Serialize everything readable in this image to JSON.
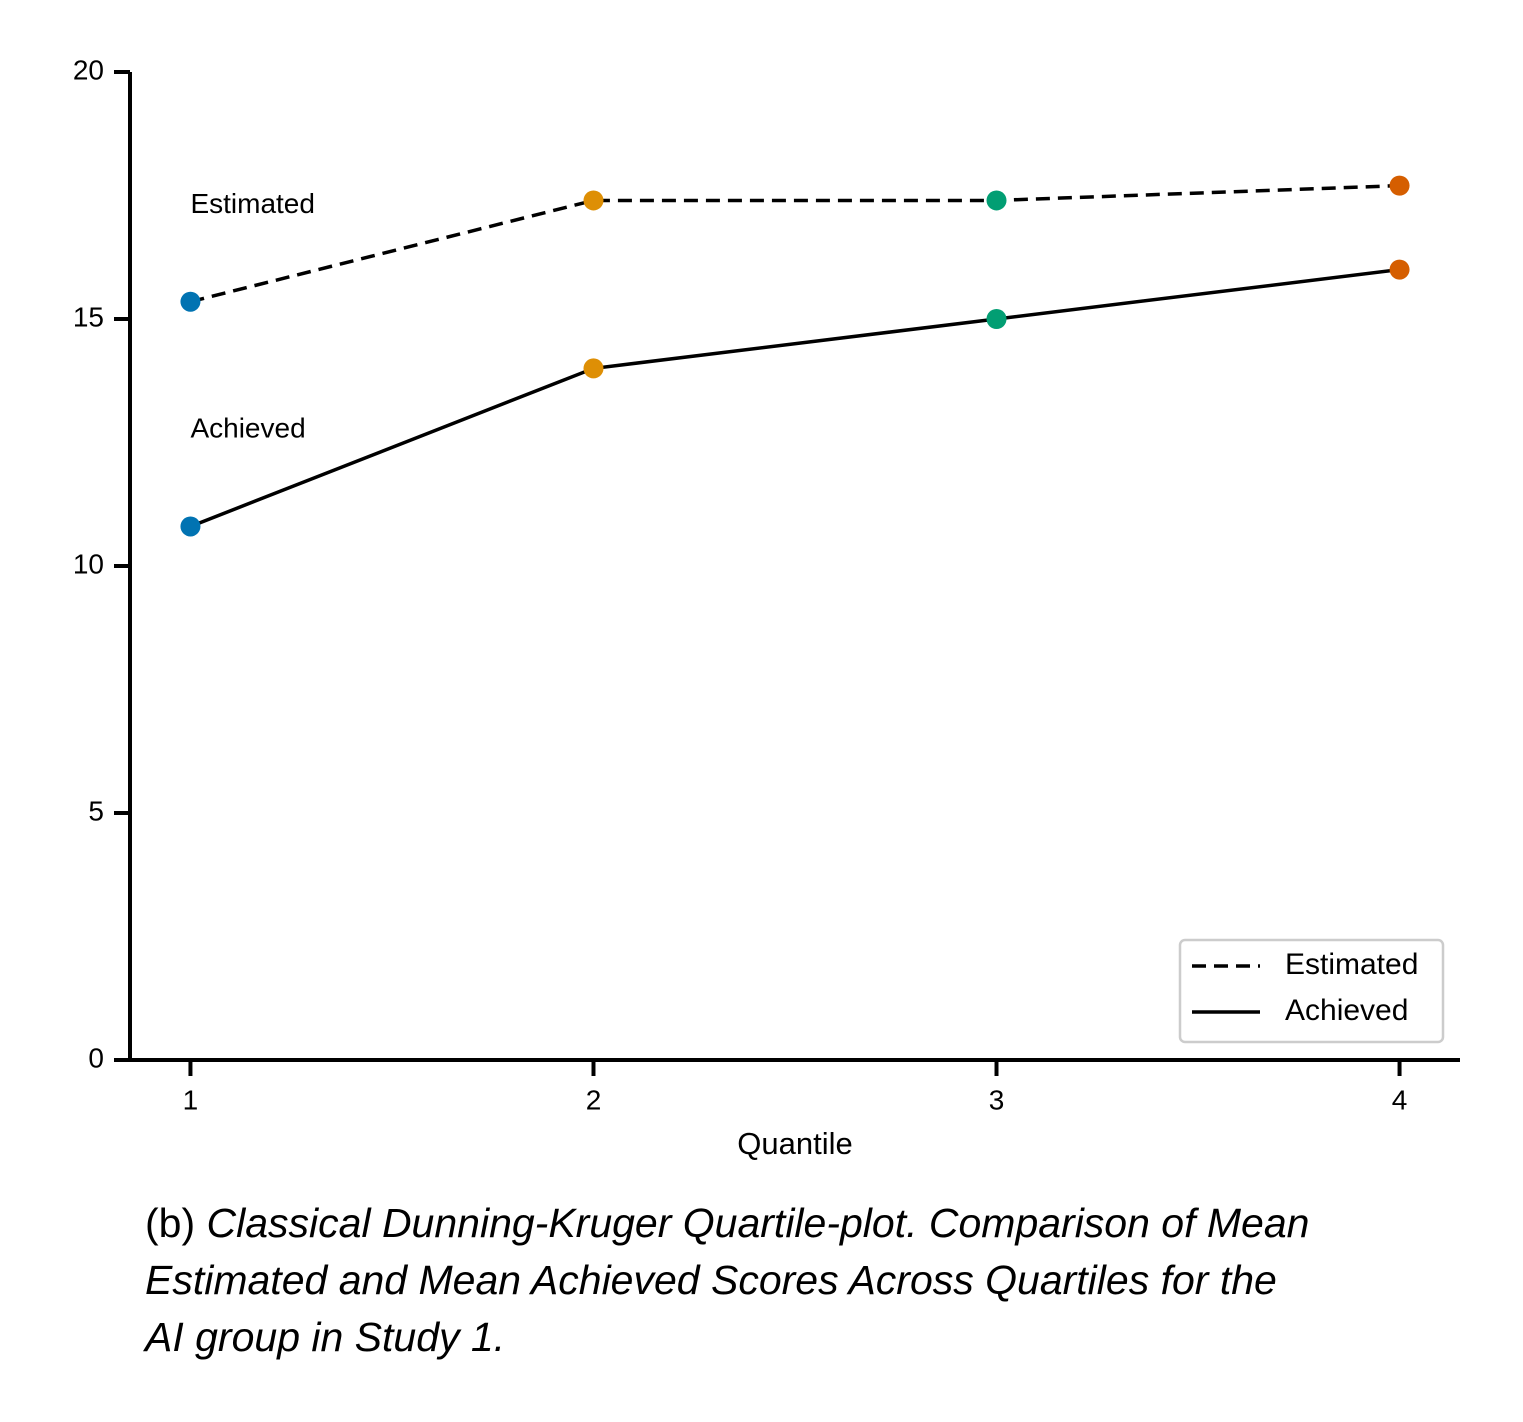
{
  "chart_data": {
    "type": "line",
    "x": [
      1,
      2,
      3,
      4
    ],
    "xlabel": "Quantile",
    "xlim": [
      0.85,
      4.15
    ],
    "xticks": [
      1,
      2,
      3,
      4
    ],
    "ylim": [
      0,
      20
    ],
    "yticks": [
      0,
      5,
      10,
      15,
      20
    ],
    "line_color": "#000000",
    "point_colors": [
      "#0173b2",
      "#de8f05",
      "#029e73",
      "#d55e00"
    ],
    "series": [
      {
        "name": "Estimated",
        "dash": "dashed",
        "values": [
          15.35,
          17.4,
          17.4,
          17.7
        ]
      },
      {
        "name": "Achieved",
        "dash": "solid",
        "values": [
          10.8,
          14.0,
          15.0,
          16.0
        ]
      }
    ],
    "annotations": [
      {
        "text": "Estimated",
        "x": 1,
        "y": 17.3
      },
      {
        "text": "Achieved",
        "x": 1,
        "y": 12.75
      }
    ],
    "legend": "lower right",
    "caption": {
      "label": "(b)",
      "text": "Classical Dunning-Kruger Quartile-plot. Comparison of Mean Estimated and Mean Achieved Scores Across Quartiles for the AI group in Study 1."
    }
  }
}
